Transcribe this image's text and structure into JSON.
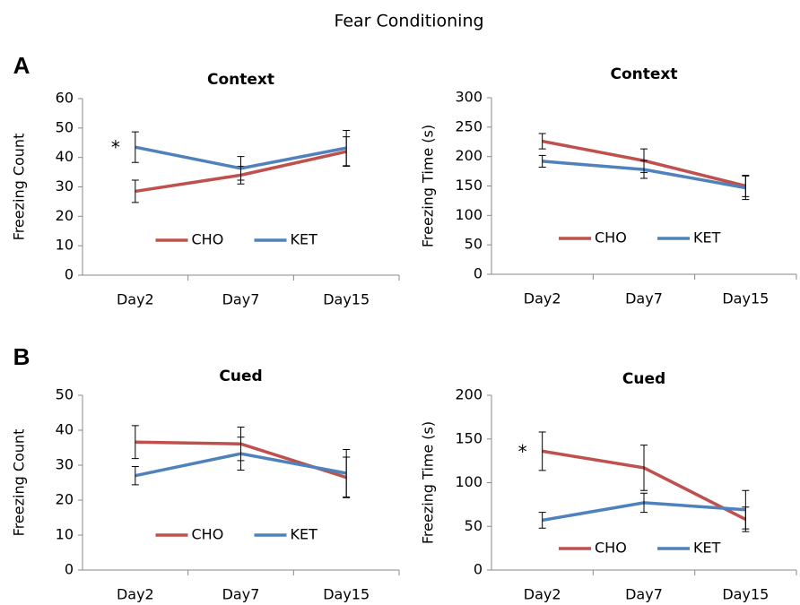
{
  "title": "Fear Conditioning",
  "chart_data": [
    {
      "type": "line",
      "panel": "A",
      "title": "Context",
      "y_label": "Freezing Count",
      "categories": [
        "Day2",
        "Day7",
        "Day15"
      ],
      "ylim": [
        0,
        60
      ],
      "yticks": [
        0,
        10,
        20,
        30,
        40,
        50,
        60
      ],
      "series": [
        {
          "name": "CHO",
          "color": "#c0504d",
          "values": [
            28.5,
            34,
            42
          ],
          "errors": [
            3.8,
            3,
            5
          ]
        },
        {
          "name": "KET",
          "color": "#4f81bd",
          "values": [
            43.5,
            36.3,
            43.2
          ],
          "errors": [
            5.2,
            4,
            6
          ]
        }
      ],
      "annotations": [
        {
          "text": "*",
          "category": "Day2"
        }
      ]
    },
    {
      "type": "line",
      "title": "Context",
      "y_label": "Freezing Time (s)",
      "categories": [
        "Day2",
        "Day7",
        "Day15"
      ],
      "ylim": [
        0,
        300
      ],
      "yticks": [
        0,
        50,
        100,
        150,
        200,
        250,
        300
      ],
      "series": [
        {
          "name": "CHO",
          "color": "#c0504d",
          "values": [
            226,
            193,
            150
          ],
          "errors": [
            13,
            20,
            18
          ]
        },
        {
          "name": "KET",
          "color": "#4f81bd",
          "values": [
            192,
            178,
            147
          ],
          "errors": [
            10,
            15,
            20
          ]
        }
      ]
    },
    {
      "type": "line",
      "panel": "B",
      "title": "Cued",
      "y_label": "Freezing Count",
      "categories": [
        "Day2",
        "Day7",
        "Day15"
      ],
      "ylim": [
        0,
        50
      ],
      "yticks": [
        0,
        10,
        20,
        30,
        40,
        50
      ],
      "series": [
        {
          "name": "CHO",
          "color": "#c0504d",
          "values": [
            36.6,
            36.1,
            26.5
          ],
          "errors": [
            4.7,
            4.8,
            5.8
          ]
        },
        {
          "name": "KET",
          "color": "#4f81bd",
          "values": [
            27,
            33.3,
            27.7
          ],
          "errors": [
            2.6,
            4.7,
            6.8
          ]
        }
      ]
    },
    {
      "type": "line",
      "title": "Cued",
      "y_label": "Freezing Time (s)",
      "categories": [
        "Day2",
        "Day7",
        "Day15"
      ],
      "ylim": [
        0,
        200
      ],
      "yticks": [
        0,
        50,
        100,
        150,
        200
      ],
      "series": [
        {
          "name": "CHO",
          "color": "#c0504d",
          "values": [
            136,
            117,
            58
          ],
          "errors": [
            22,
            26,
            14
          ]
        },
        {
          "name": "KET",
          "color": "#4f81bd",
          "values": [
            57,
            77,
            69
          ],
          "errors": [
            9,
            11,
            22
          ]
        }
      ],
      "annotations": [
        {
          "text": "*",
          "category": "Day2"
        }
      ]
    }
  ]
}
